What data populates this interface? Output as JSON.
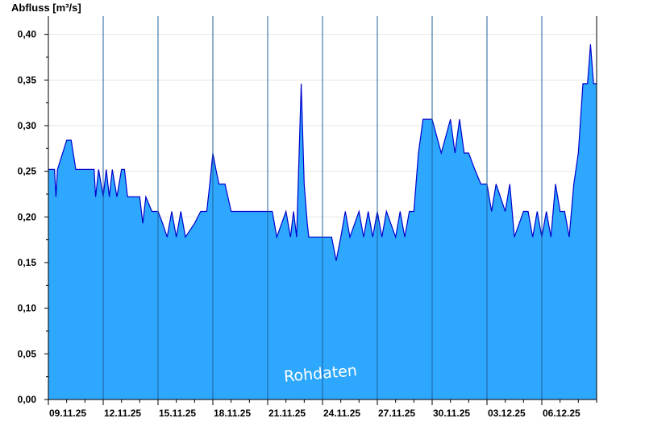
{
  "chart_data": {
    "type": "area",
    "ylabel": "Abfluss [m³/s]",
    "watermark": "Rohdaten",
    "ylim": [
      0,
      0.42
    ],
    "xlim": [
      "2025-11-09",
      "2025-12-09"
    ],
    "grid": true,
    "fill_color": "#2ea8fe",
    "line_color": "#0000cc",
    "x_tick_labels": [
      "09.11.25",
      "12.11.25",
      "15.11.25",
      "18.11.25",
      "21.11.25",
      "24.11.25",
      "27.11.25",
      "30.11.25",
      "03.12.25",
      "06.12.25"
    ],
    "y_tick_values": [
      0,
      0.05,
      0.1,
      0.15,
      0.2,
      0.25,
      0.3,
      0.35,
      0.4
    ],
    "y_tick_labels": [
      "0,00",
      "0,05",
      "0,10",
      "0,15",
      "0,20",
      "0,25",
      "0,30",
      "0,35",
      "0,40"
    ],
    "series": [
      {
        "x": [
          "2025-11-09 00:00",
          "2025-11-09 08:00",
          "2025-11-09 10:00",
          "2025-11-09 12:00",
          "2025-11-10 00:00",
          "2025-11-10 06:00",
          "2025-11-10 12:00",
          "2025-11-11 00:00",
          "2025-11-11 12:00",
          "2025-11-11 14:00",
          "2025-11-11 18:00",
          "2025-11-12 00:00",
          "2025-11-12 04:00",
          "2025-11-12 08:00",
          "2025-11-12 12:00",
          "2025-11-12 18:00",
          "2025-11-13 00:00",
          "2025-11-13 04:00",
          "2025-11-13 08:00",
          "2025-11-13 16:00",
          "2025-11-14 00:00",
          "2025-11-14 04:00",
          "2025-11-14 08:00",
          "2025-11-14 16:00",
          "2025-11-15 00:00",
          "2025-11-15 06:00",
          "2025-11-15 12:00",
          "2025-11-15 18:00",
          "2025-11-16 00:00",
          "2025-11-16 06:00",
          "2025-11-16 12:00",
          "2025-11-17 00:00",
          "2025-11-17 08:00",
          "2025-11-17 16:00",
          "2025-11-17 20:00",
          "2025-11-18 00:00",
          "2025-11-18 04:00",
          "2025-11-18 08:00",
          "2025-11-18 16:00",
          "2025-11-19 00:00",
          "2025-11-19 12:00",
          "2025-11-20 00:00",
          "2025-11-20 12:00",
          "2025-11-21 00:00",
          "2025-11-21 06:00",
          "2025-11-21 12:00",
          "2025-11-22 00:00",
          "2025-11-22 06:00",
          "2025-11-22 10:00",
          "2025-11-22 14:00",
          "2025-11-22 18:00",
          "2025-11-22 20:00",
          "2025-11-23 00:00",
          "2025-11-23 04:00",
          "2025-11-23 06:00",
          "2025-11-23 12:00",
          "2025-11-24 00:00",
          "2025-11-24 12:00",
          "2025-11-24 18:00",
          "2025-11-25 00:00",
          "2025-11-25 06:00",
          "2025-11-25 12:00",
          "2025-11-26 00:00",
          "2025-11-26 06:00",
          "2025-11-26 12:00",
          "2025-11-26 18:00",
          "2025-11-27 00:00",
          "2025-11-27 06:00",
          "2025-11-27 12:00",
          "2025-11-28 00:00",
          "2025-11-28 06:00",
          "2025-11-28 12:00",
          "2025-11-28 18:00",
          "2025-11-29 00:00",
          "2025-11-29 06:00",
          "2025-11-29 12:00",
          "2025-11-30 00:00",
          "2025-11-30 12:00",
          "2025-12-01 00:00",
          "2025-12-01 06:00",
          "2025-12-01 12:00",
          "2025-12-01 18:00",
          "2025-12-02 00:00",
          "2025-12-02 08:00",
          "2025-12-02 16:00",
          "2025-12-03 00:00",
          "2025-12-03 06:00",
          "2025-12-03 12:00",
          "2025-12-04 00:00",
          "2025-12-04 06:00",
          "2025-12-04 12:00",
          "2025-12-05 00:00",
          "2025-12-05 06:00",
          "2025-12-05 12:00",
          "2025-12-05 18:00",
          "2025-12-06 00:00",
          "2025-12-06 06:00",
          "2025-12-06 12:00",
          "2025-12-06 18:00",
          "2025-12-07 00:00",
          "2025-12-07 06:00",
          "2025-12-07 12:00",
          "2025-12-07 18:00",
          "2025-12-08 00:00",
          "2025-12-08 06:00",
          "2025-12-08 12:00",
          "2025-12-08 16:00",
          "2025-12-08 20:00",
          "2025-12-09 00:00"
        ],
        "y": [
          0.252,
          0.252,
          0.222,
          0.252,
          0.284,
          0.284,
          0.252,
          0.252,
          0.252,
          0.222,
          0.252,
          0.222,
          0.252,
          0.222,
          0.252,
          0.222,
          0.252,
          0.252,
          0.222,
          0.222,
          0.222,
          0.193,
          0.222,
          0.206,
          0.206,
          0.193,
          0.178,
          0.206,
          0.178,
          0.206,
          0.178,
          0.193,
          0.206,
          0.206,
          0.236,
          0.27,
          0.252,
          0.236,
          0.236,
          0.206,
          0.206,
          0.206,
          0.206,
          0.206,
          0.206,
          0.178,
          0.206,
          0.178,
          0.206,
          0.178,
          0.29,
          0.346,
          0.236,
          0.193,
          0.178,
          0.178,
          0.178,
          0.178,
          0.152,
          0.178,
          0.206,
          0.178,
          0.206,
          0.178,
          0.206,
          0.178,
          0.206,
          0.178,
          0.206,
          0.178,
          0.206,
          0.178,
          0.206,
          0.206,
          0.27,
          0.307,
          0.307,
          0.27,
          0.307,
          0.27,
          0.307,
          0.27,
          0.27,
          0.252,
          0.236,
          0.236,
          0.206,
          0.236,
          0.206,
          0.236,
          0.178,
          0.206,
          0.206,
          0.178,
          0.206,
          0.178,
          0.206,
          0.178,
          0.236,
          0.206,
          0.206,
          0.178,
          0.236,
          0.27,
          0.346,
          0.346,
          0.389,
          0.346,
          0.346
        ]
      }
    ]
  }
}
